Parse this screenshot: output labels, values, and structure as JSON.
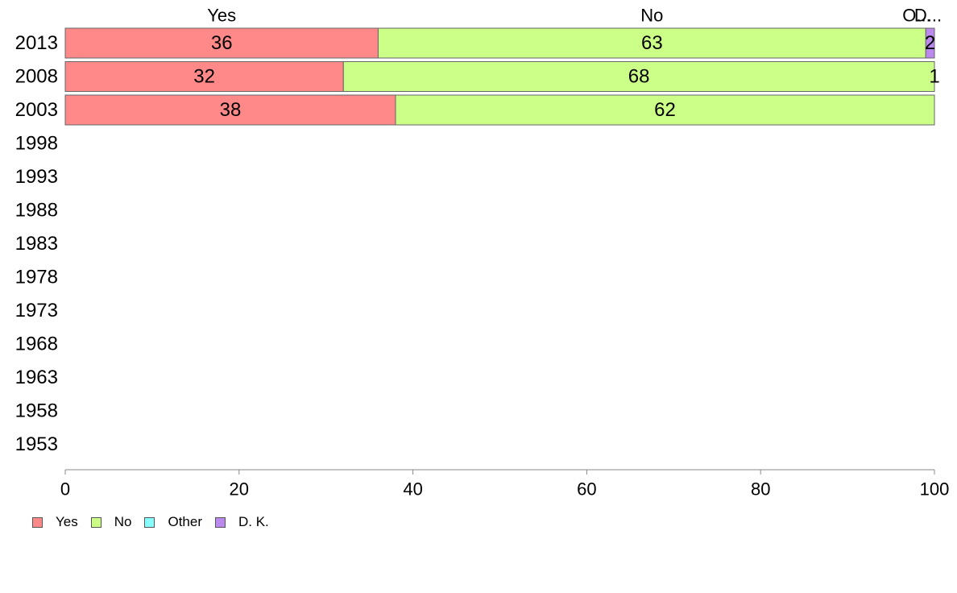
{
  "chart_data": {
    "type": "bar",
    "orientation": "horizontal",
    "stacked": true,
    "categories": [
      "2013",
      "2008",
      "2003",
      "1998",
      "1993",
      "1988",
      "1983",
      "1978",
      "1973",
      "1968",
      "1963",
      "1958",
      "1953"
    ],
    "series": [
      {
        "name": "Yes",
        "color": "#FF8888",
        "values": [
          36,
          32,
          38,
          null,
          null,
          null,
          null,
          null,
          null,
          null,
          null,
          null,
          null
        ]
      },
      {
        "name": "No",
        "color": "#CCFF88",
        "values": [
          63,
          68,
          62,
          null,
          null,
          null,
          null,
          null,
          null,
          null,
          null,
          null,
          null
        ]
      },
      {
        "name": "Other",
        "color": "#88FFFF",
        "values": [
          0,
          0,
          0,
          null,
          null,
          null,
          null,
          null,
          null,
          null,
          null,
          null,
          null
        ]
      },
      {
        "name": "D. K.",
        "color": "#BB88EE",
        "values": [
          2,
          1,
          0,
          null,
          null,
          null,
          null,
          null,
          null,
          null,
          null,
          null,
          null
        ]
      }
    ],
    "top_labels": [
      "Yes",
      "No",
      "O...",
      "D..."
    ],
    "xlim": [
      0,
      100
    ],
    "xticks": [
      "0",
      "20",
      "40",
      "60",
      "80",
      "100"
    ],
    "grid": false,
    "legend_position": "bottom-left"
  }
}
